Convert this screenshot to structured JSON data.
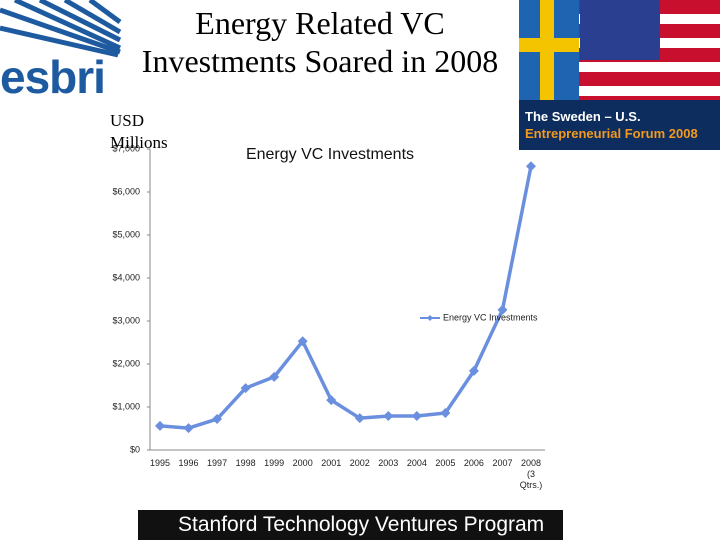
{
  "slide": {
    "title": "Energy Related VC Investments Soared in 2008",
    "logo_left": "esbri",
    "banner": [
      "The Sweden – U.S.",
      "Entrepreneurial Forum 2008"
    ],
    "footer": "Stanford Technology Ventures Program"
  },
  "chart_data": {
    "type": "line",
    "title": "Energy VC Investments",
    "y_label": "USD Millions",
    "categories": [
      "1995",
      "1996",
      "1997",
      "1998",
      "1999",
      "2000",
      "2001",
      "2002",
      "2003",
      "2004",
      "2005",
      "2006",
      "2007",
      "2008 (3 Qtrs.)"
    ],
    "series": [
      {
        "name": "Energy VC Investments",
        "color": "#6b8fdf",
        "values": [
          560,
          510,
          720,
          1440,
          1700,
          2530,
          1160,
          740,
          790,
          790,
          860,
          1840,
          3260,
          6600
        ]
      }
    ],
    "ylim": [
      0,
      7000
    ],
    "yticks": [
      {
        "value": 0,
        "label": "$0"
      },
      {
        "value": 1000,
        "label": "$1,000"
      },
      {
        "value": 2000,
        "label": "$2,000"
      },
      {
        "value": 3000,
        "label": "$3,000"
      },
      {
        "value": 4000,
        "label": "$4,000"
      },
      {
        "value": 5000,
        "label": "$5,000"
      },
      {
        "value": 6000,
        "label": "$6,000"
      },
      {
        "value": 7000,
        "label": "$7,000"
      }
    ],
    "grid": false,
    "legend": "right"
  }
}
